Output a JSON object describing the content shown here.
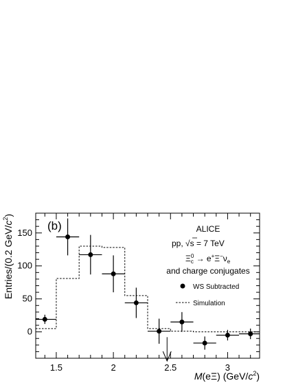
{
  "chart_data": {
    "type": "scatter",
    "panel_label": "(b)",
    "xlabel_parts": {
      "var": "M",
      "open": "(e",
      "xi": "Ξ",
      "close": ")",
      "units": "(GeV/",
      "c": "c",
      "exp": "2",
      "end": ")"
    },
    "ylabel_parts": {
      "main": "Entries/(0.2 GeV/",
      "c": "c",
      "exp": "2",
      "end": ")"
    },
    "xlim": [
      1.32,
      3.28
    ],
    "ylim": [
      -40,
      180
    ],
    "x_ticks": [
      1.5,
      2,
      2.5,
      3
    ],
    "x_tick_labels": [
      "1.5",
      "2",
      "2.5",
      "3"
    ],
    "y_ticks": [
      0,
      50,
      100,
      150
    ],
    "y_tick_labels": [
      "0",
      "50",
      "100",
      "150"
    ],
    "annotation": {
      "experiment": "ALICE",
      "energy_prefix": "pp, ",
      "sqrt": "√",
      "energy_s": "s",
      "energy_value": " = 7 TeV",
      "decay_xi": "Ξ",
      "decay_c": "c",
      "decay_zero": "0",
      "decay_arrow": " → e",
      "decay_plus": "+",
      "decay_xi2": "Ξ",
      "decay_minus": "−",
      "decay_nu": "ν",
      "decay_e": "e",
      "conjugates": "and charge conjugates"
    },
    "legend": {
      "placement": "right",
      "data_label": "WS Subtracted",
      "sim_label": "Simulation"
    },
    "series": [
      {
        "name": "WS Subtracted",
        "style": "points-with-errors",
        "x": [
          1.4,
          1.6,
          1.8,
          2.0,
          2.2,
          2.4,
          2.6,
          2.8,
          3.0,
          3.2
        ],
        "y": [
          19,
          144,
          117,
          88,
          44,
          1,
          15,
          -17,
          -5,
          -3
        ],
        "yerr": [
          7,
          28,
          30,
          28,
          23,
          19,
          15,
          10,
          8,
          8
        ],
        "xerr": [
          0.1,
          0.1,
          0.1,
          0.1,
          0.1,
          0.1,
          0.1,
          0.1,
          0.1,
          0.1
        ]
      },
      {
        "name": "Simulation",
        "style": "dashed-step",
        "edges": [
          1.3,
          1.5,
          1.7,
          1.9,
          2.1,
          2.3,
          2.5,
          2.7,
          2.9,
          3.1,
          3.3
        ],
        "values": [
          5,
          81,
          130,
          128,
          55,
          5,
          1,
          0,
          0,
          0
        ]
      }
    ],
    "arrow_marker": {
      "x": 2.47,
      "direction": "down"
    },
    "colors": {
      "axis": "#000000",
      "marker": "#000000",
      "simulation": "#000000"
    }
  }
}
